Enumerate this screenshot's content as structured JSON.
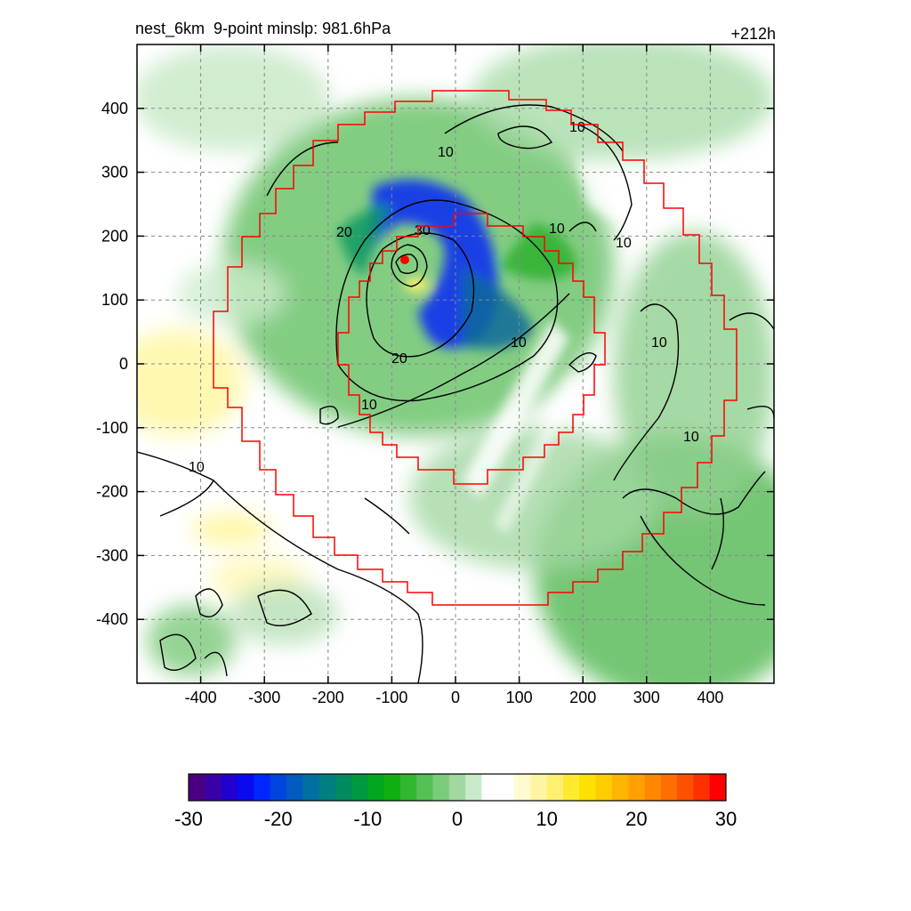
{
  "header": {
    "left_title": "nest_6km  9-point minslp: 981.6hPa",
    "right_title": "+212h"
  },
  "chart_data": {
    "type": "heatmap",
    "xlim": [
      -500,
      500
    ],
    "ylim": [
      -500,
      500
    ],
    "x_ticks": [
      -400,
      -300,
      -200,
      -100,
      0,
      100,
      200,
      300,
      400
    ],
    "y_ticks": [
      400,
      300,
      200,
      100,
      0,
      -100,
      -200,
      -300,
      -400
    ],
    "x_tick_labels": [
      "-400",
      "-300",
      "-200",
      "-100",
      "0",
      "100",
      "200",
      "300",
      "400"
    ],
    "y_tick_labels": [
      "400",
      "300",
      "200",
      "100",
      "0",
      "-100",
      "-200",
      "-300",
      "-400"
    ],
    "grid": true,
    "contour_labels": [
      "10",
      "10",
      "10",
      "10",
      "10",
      "10",
      "10",
      "10",
      "10",
      "20",
      "20",
      "30"
    ],
    "colorbar": {
      "range": [
        -30,
        30
      ],
      "tick_labels": [
        "-30",
        "-20",
        "-10",
        "0",
        "10",
        "20",
        "30"
      ],
      "colors": [
        "#4b0082",
        "#3a00a8",
        "#2300d0",
        "#0a0af0",
        "#0026ff",
        "#0044e0",
        "#005ac0",
        "#0070a0",
        "#007f80",
        "#008a60",
        "#009840",
        "#00a820",
        "#10b010",
        "#30b830",
        "#55c055",
        "#7acc7a",
        "#a0d8a0",
        "#c8eac8",
        "#ffffff",
        "#ffffff",
        "#fffad0",
        "#fff5a0",
        "#fff070",
        "#ffea30",
        "#ffe000",
        "#ffcc00",
        "#ffb600",
        "#ffa000",
        "#ff8800",
        "#ff6e00",
        "#ff5000",
        "#ff3000",
        "#ff0000"
      ]
    },
    "center_marker_color": "#ff0000",
    "boundary_color": "#ff0000"
  }
}
